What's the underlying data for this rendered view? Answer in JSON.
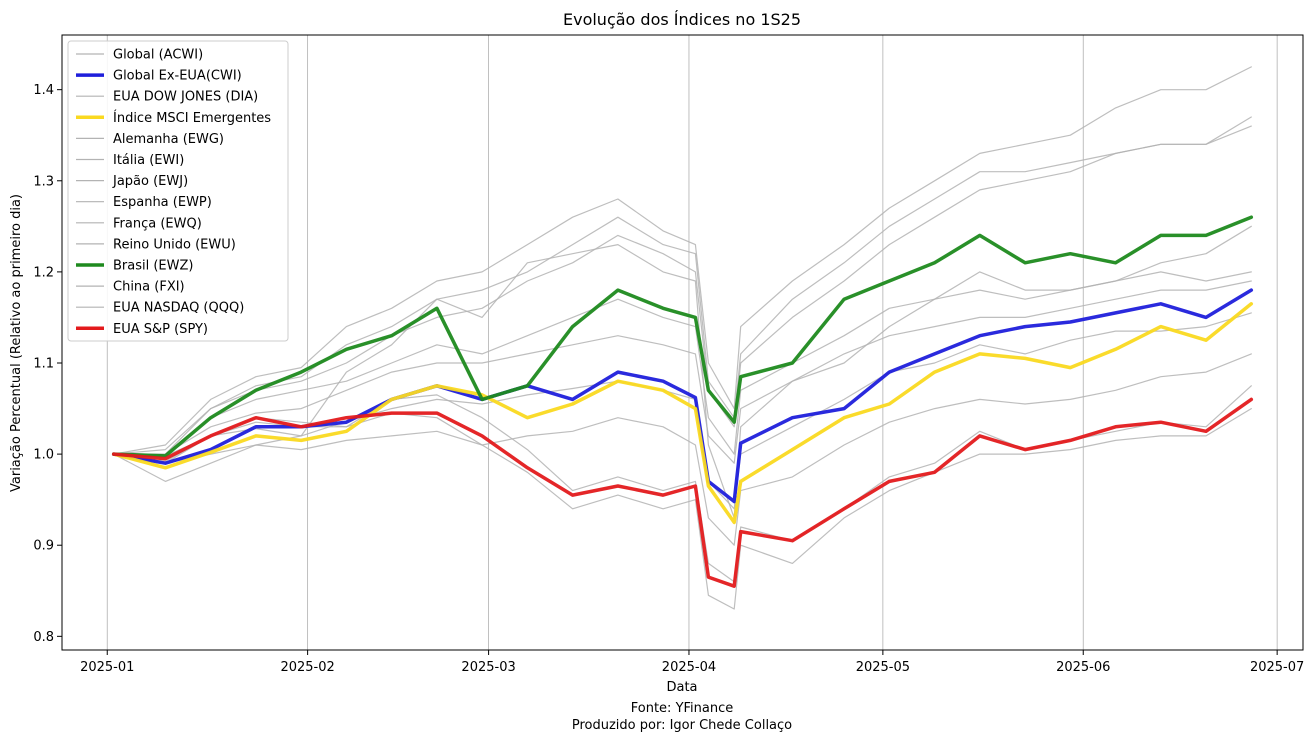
{
  "chart_data": {
    "type": "line",
    "title": "Evolução dos Índices no 1S25",
    "xlabel": "Data",
    "ylabel": "Variação Percentual (Relativo ao primeiro dia)",
    "xlim": [
      "2024-12-25",
      "2025-07-05"
    ],
    "ylim": [
      0.785,
      1.46
    ],
    "grid": "vertical",
    "legend_position": "top-left",
    "xticks": [
      "2025-01",
      "2025-02",
      "2025-03",
      "2025-04",
      "2025-05",
      "2025-06",
      "2025-07"
    ],
    "yticks": [
      "0.8",
      "0.9",
      "1.0",
      "1.1",
      "1.2",
      "1.3",
      "1.4"
    ],
    "x_dates": [
      "2025-01-02",
      "2025-01-10",
      "2025-01-17",
      "2025-01-24",
      "2025-01-31",
      "2025-02-07",
      "2025-02-14",
      "2025-02-21",
      "2025-02-28",
      "2025-03-07",
      "2025-03-14",
      "2025-03-21",
      "2025-03-28",
      "2025-04-02",
      "2025-04-04",
      "2025-04-08",
      "2025-04-09",
      "2025-04-17",
      "2025-04-25",
      "2025-05-02",
      "2025-05-09",
      "2025-05-16",
      "2025-05-23",
      "2025-05-30",
      "2025-06-06",
      "2025-06-13",
      "2025-06-20",
      "2025-06-27"
    ],
    "series": [
      {
        "name": "Global (ACWI)",
        "color": "#b3b3b3",
        "highlight": false,
        "values": [
          1.0,
          0.998,
          1.02,
          1.028,
          1.02,
          1.036,
          1.05,
          1.06,
          1.055,
          1.065,
          1.072,
          1.08,
          1.07,
          1.06,
          0.97,
          0.94,
          1.0,
          1.03,
          1.06,
          1.09,
          1.1,
          1.12,
          1.11,
          1.125,
          1.135,
          1.135,
          1.14,
          1.155
        ]
      },
      {
        "name": "Global Ex-EUA(CWI)",
        "color": "#1f1fdb",
        "highlight": true,
        "values": [
          1.0,
          0.99,
          1.005,
          1.03,
          1.03,
          1.035,
          1.06,
          1.075,
          1.06,
          1.075,
          1.06,
          1.09,
          1.08,
          1.062,
          0.97,
          0.948,
          1.012,
          1.04,
          1.05,
          1.09,
          1.11,
          1.13,
          1.14,
          1.145,
          1.155,
          1.165,
          1.15,
          1.18
        ]
      },
      {
        "name": "EUA DOW JONES (DIA)",
        "color": "#b3b3b3",
        "highlight": false,
        "values": [
          1.0,
          0.992,
          1.02,
          1.04,
          1.035,
          1.03,
          1.06,
          1.065,
          1.04,
          1.005,
          0.96,
          0.975,
          0.96,
          0.97,
          0.88,
          0.86,
          0.92,
          0.905,
          0.94,
          0.975,
          0.99,
          1.025,
          1.005,
          1.015,
          1.025,
          1.035,
          1.03,
          1.075
        ]
      },
      {
        "name": "Índice MSCI Emergentes",
        "color": "#fad920",
        "highlight": true,
        "values": [
          1.0,
          0.985,
          1.002,
          1.02,
          1.015,
          1.025,
          1.06,
          1.075,
          1.065,
          1.04,
          1.055,
          1.08,
          1.07,
          1.05,
          0.965,
          0.925,
          0.97,
          1.005,
          1.04,
          1.055,
          1.09,
          1.11,
          1.105,
          1.095,
          1.115,
          1.14,
          1.125,
          1.165
        ]
      },
      {
        "name": "Alemanha (EWG)",
        "color": "#b3b3b3",
        "highlight": false,
        "values": [
          1.0,
          1.01,
          1.06,
          1.085,
          1.095,
          1.14,
          1.16,
          1.19,
          1.2,
          1.23,
          1.26,
          1.28,
          1.245,
          1.23,
          1.1,
          1.05,
          1.14,
          1.19,
          1.23,
          1.27,
          1.3,
          1.33,
          1.34,
          1.35,
          1.38,
          1.4,
          1.4,
          1.425
        ]
      },
      {
        "name": "Itália (EWI)",
        "color": "#b3b3b3",
        "highlight": false,
        "values": [
          1.0,
          1.0,
          1.05,
          1.07,
          1.08,
          1.1,
          1.13,
          1.15,
          1.16,
          1.19,
          1.21,
          1.24,
          1.22,
          1.2,
          1.07,
          1.03,
          1.1,
          1.15,
          1.19,
          1.23,
          1.26,
          1.29,
          1.3,
          1.31,
          1.33,
          1.34,
          1.34,
          1.37
        ]
      },
      {
        "name": "Japão (EWJ)",
        "color": "#b3b3b3",
        "highlight": false,
        "values": [
          1.0,
          0.99,
          1.0,
          1.01,
          1.005,
          1.015,
          1.02,
          1.025,
          1.01,
          1.02,
          1.025,
          1.04,
          1.03,
          1.01,
          0.93,
          0.9,
          0.96,
          0.975,
          1.01,
          1.035,
          1.05,
          1.06,
          1.055,
          1.06,
          1.07,
          1.085,
          1.09,
          1.11
        ]
      },
      {
        "name": "Espanha (EWP)",
        "color": "#b3b3b3",
        "highlight": false,
        "values": [
          1.0,
          1.005,
          1.05,
          1.075,
          1.085,
          1.12,
          1.14,
          1.17,
          1.18,
          1.2,
          1.23,
          1.26,
          1.23,
          1.22,
          1.08,
          1.04,
          1.11,
          1.17,
          1.21,
          1.25,
          1.28,
          1.31,
          1.31,
          1.32,
          1.33,
          1.34,
          1.34,
          1.36
        ]
      },
      {
        "name": "França (EWQ)",
        "color": "#b3b3b3",
        "highlight": false,
        "values": [
          1.0,
          1.0,
          1.04,
          1.06,
          1.07,
          1.08,
          1.1,
          1.12,
          1.11,
          1.13,
          1.15,
          1.17,
          1.15,
          1.14,
          1.04,
          1.0,
          1.07,
          1.1,
          1.13,
          1.16,
          1.17,
          1.18,
          1.17,
          1.18,
          1.19,
          1.2,
          1.19,
          1.2
        ]
      },
      {
        "name": "Reino Unido (EWU)",
        "color": "#b3b3b3",
        "highlight": false,
        "values": [
          1.0,
          1.0,
          1.03,
          1.045,
          1.05,
          1.07,
          1.09,
          1.1,
          1.1,
          1.11,
          1.12,
          1.13,
          1.12,
          1.11,
          1.02,
          0.99,
          1.05,
          1.08,
          1.11,
          1.13,
          1.14,
          1.15,
          1.15,
          1.16,
          1.17,
          1.18,
          1.18,
          1.19
        ]
      },
      {
        "name": "Brasil (EWZ)",
        "color": "#1e8a1e",
        "highlight": true,
        "values": [
          1.0,
          0.998,
          1.04,
          1.07,
          1.09,
          1.115,
          1.13,
          1.16,
          1.06,
          1.075,
          1.14,
          1.18,
          1.16,
          1.15,
          1.07,
          1.035,
          1.085,
          1.1,
          1.17,
          1.19,
          1.21,
          1.24,
          1.21,
          1.22,
          1.21,
          1.24,
          1.24,
          1.26
        ]
      },
      {
        "name": "China (FXI)",
        "color": "#b3b3b3",
        "highlight": false,
        "values": [
          1.0,
          0.97,
          0.99,
          1.01,
          1.02,
          1.09,
          1.12,
          1.17,
          1.15,
          1.21,
          1.22,
          1.23,
          1.2,
          1.19,
          1.01,
          0.93,
          1.03,
          1.08,
          1.1,
          1.14,
          1.17,
          1.2,
          1.18,
          1.18,
          1.19,
          1.21,
          1.22,
          1.25
        ]
      },
      {
        "name": "EUA NASDAQ (QQQ)",
        "color": "#b3b3b3",
        "highlight": false,
        "values": [
          1.0,
          0.99,
          1.02,
          1.035,
          1.03,
          1.03,
          1.045,
          1.04,
          1.01,
          0.98,
          0.94,
          0.955,
          0.94,
          0.95,
          0.845,
          0.83,
          0.9,
          0.88,
          0.93,
          0.96,
          0.98,
          1.0,
          1.0,
          1.005,
          1.015,
          1.02,
          1.02,
          1.05
        ]
      },
      {
        "name": "EUA S&P (SPY)",
        "color": "#e31a1c",
        "highlight": true,
        "values": [
          1.0,
          0.995,
          1.02,
          1.04,
          1.03,
          1.04,
          1.045,
          1.045,
          1.02,
          0.985,
          0.955,
          0.965,
          0.955,
          0.965,
          0.865,
          0.855,
          0.915,
          0.905,
          0.94,
          0.97,
          0.98,
          1.02,
          1.005,
          1.015,
          1.03,
          1.035,
          1.025,
          1.06
        ]
      }
    ]
  },
  "footer": {
    "source": "Fonte: YFinance",
    "producer": "Produzido por: Igor Chede Collaço"
  }
}
